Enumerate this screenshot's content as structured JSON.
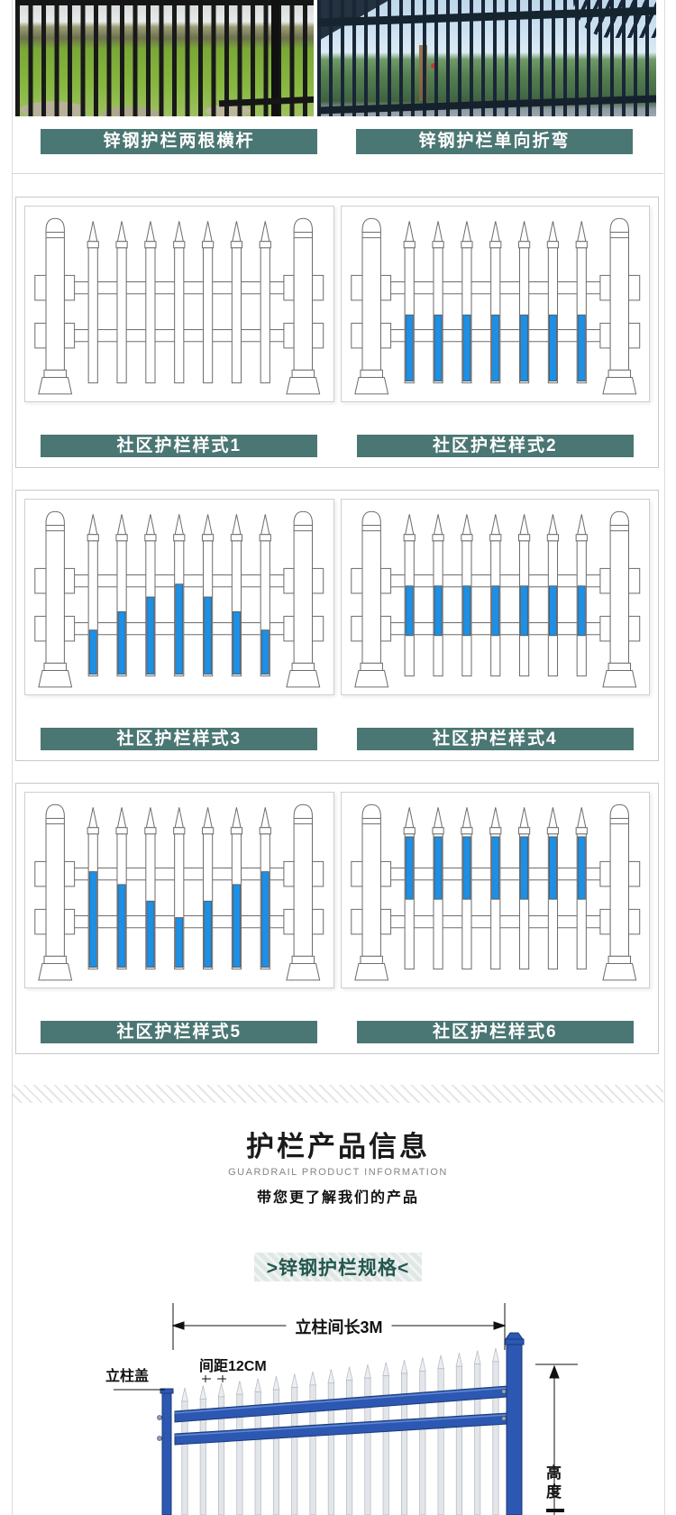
{
  "colors": {
    "teal": "#4a7673",
    "picket_blue": "#1d8fe4",
    "drawing_line": "#6e6e6e",
    "diagram_blue": "#2c57b2",
    "banner_text": "#24574f"
  },
  "photo_section": {
    "items": [
      {
        "label": "锌钢护栏两根横杆"
      },
      {
        "label": "锌钢护栏单向折弯"
      }
    ]
  },
  "style_rows": [
    {
      "cells": [
        {
          "label": "社区护栏样式1",
          "pattern": "s1"
        },
        {
          "label": "社区护栏样式2",
          "pattern": "s2"
        }
      ]
    },
    {
      "cells": [
        {
          "label": "社区护栏样式3",
          "pattern": "s3"
        },
        {
          "label": "社区护栏样式4",
          "pattern": "s4"
        }
      ]
    },
    {
      "cells": [
        {
          "label": "社区护栏样式5",
          "pattern": "s5"
        },
        {
          "label": "社区护栏样式6",
          "pattern": "s6"
        }
      ]
    }
  ],
  "patterns": {
    "s1": [],
    "s2": [
      [
        118,
        190
      ],
      [
        118,
        190
      ],
      [
        118,
        190
      ],
      [
        118,
        190
      ],
      [
        118,
        190
      ],
      [
        118,
        190
      ],
      [
        118,
        190
      ]
    ],
    "s3": [
      [
        142,
        190
      ],
      [
        122,
        190
      ],
      [
        106,
        190
      ],
      [
        92,
        190
      ],
      [
        106,
        190
      ],
      [
        122,
        190
      ],
      [
        142,
        190
      ]
    ],
    "s4": [
      [
        94,
        148
      ],
      [
        94,
        148
      ],
      [
        94,
        148
      ],
      [
        94,
        148
      ],
      [
        94,
        148
      ],
      [
        94,
        148
      ],
      [
        94,
        148
      ]
    ],
    "s5": [
      [
        86,
        190
      ],
      [
        100,
        190
      ],
      [
        118,
        190
      ],
      [
        136,
        190
      ],
      [
        118,
        190
      ],
      [
        100,
        190
      ],
      [
        86,
        190
      ]
    ],
    "s6": [
      [
        48,
        116
      ],
      [
        48,
        116
      ],
      [
        48,
        116
      ],
      [
        48,
        116
      ],
      [
        48,
        116
      ],
      [
        48,
        116
      ],
      [
        48,
        116
      ]
    ]
  },
  "info": {
    "title": "护栏产品信息",
    "subtitle": "GUARDRAIL PRODUCT INFORMATION",
    "tagline": "带您更了解我们的产品",
    "banner": ">锌钢护栏规格<"
  },
  "diagram": {
    "post_span_label": "立柱间长3M",
    "spacing_label": "间距12CM",
    "cap_label": "立柱盖",
    "height_label": "高度"
  }
}
